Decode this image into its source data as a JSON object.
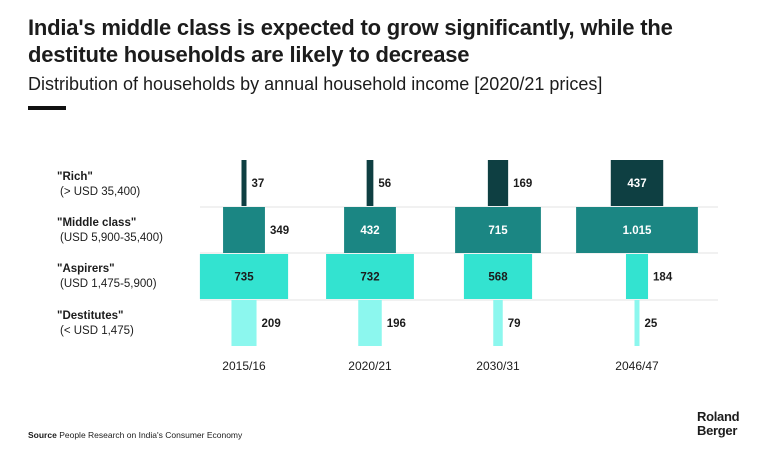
{
  "header": {
    "title": "India's middle class is expected to grow significantly, while the destitute households are likely to decrease",
    "subtitle": "Distribution of households by annual household income [2020/21 prices]"
  },
  "rows": [
    {
      "name": "\"Rich\"",
      "range": "(> USD 35,400)"
    },
    {
      "name": "\"Middle class\"",
      "range": "(USD 5,900-35,400)"
    },
    {
      "name": "\"Aspirers\"",
      "range": "(USD 1,475-5,900)"
    },
    {
      "name": "\"Destitutes\"",
      "range": "(< USD 1,475)"
    }
  ],
  "chart_data": {
    "type": "bar",
    "title": "India's middle class is expected to grow significantly, while the destitute households are likely to decrease",
    "subtitle": "Distribution of households by annual household income [2020/21 prices]",
    "categories": [
      "2015/16",
      "2020/21",
      "2030/31",
      "2046/47"
    ],
    "series": [
      {
        "name": "\"Rich\"",
        "values": [
          37,
          56,
          169,
          437
        ],
        "labels": [
          "37",
          "56",
          "169",
          "437"
        ],
        "color": "#0e3f42"
      },
      {
        "name": "\"Middle class\"",
        "values": [
          349,
          432,
          715,
          1015
        ],
        "labels": [
          "349",
          "432",
          "715",
          "1.015"
        ],
        "color": "#1b8683"
      },
      {
        "name": "\"Aspirers\"",
        "values": [
          735,
          732,
          568,
          184
        ],
        "labels": [
          "735",
          "732",
          "568",
          "184"
        ],
        "color": "#33e3d0"
      },
      {
        "name": "\"Destitutes\"",
        "values": [
          209,
          196,
          79,
          25
        ],
        "labels": [
          "209",
          "196",
          "79",
          "25"
        ],
        "color": "#8cf7ee"
      }
    ],
    "grid": false,
    "legend": "left"
  },
  "footer": {
    "source_label": "Source",
    "source_text": "People Research on India's Consumer Economy",
    "logo_line1": "Roland",
    "logo_line2": "Berger"
  }
}
